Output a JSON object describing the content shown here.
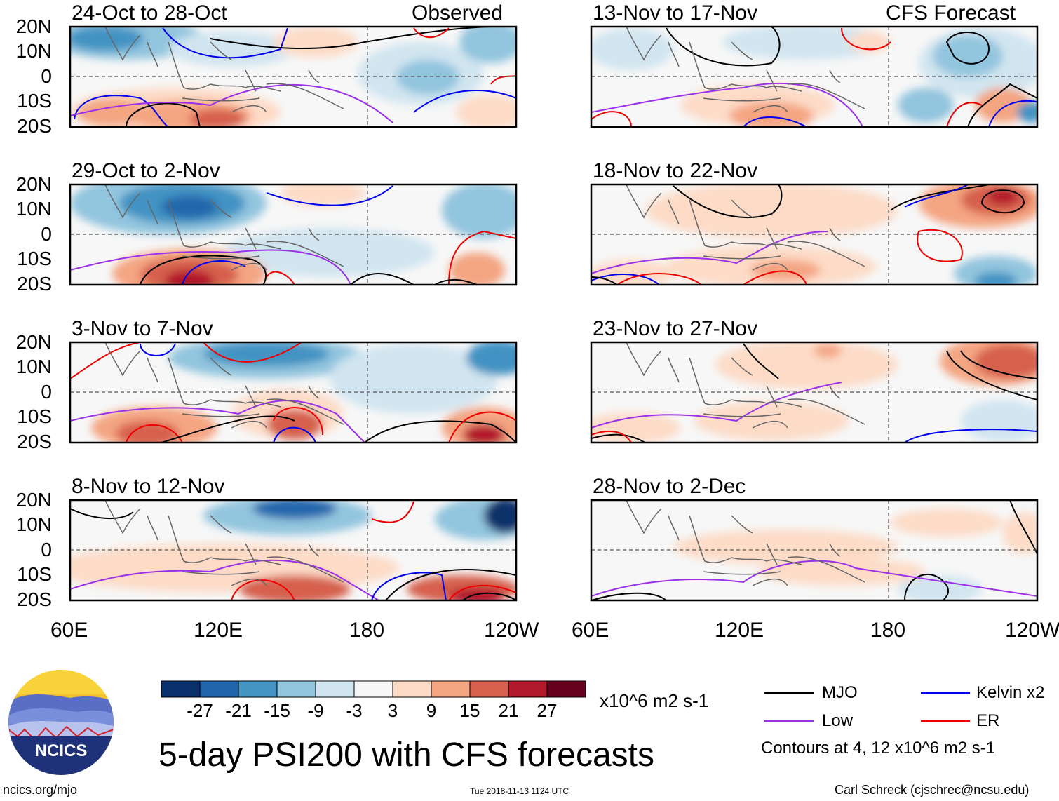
{
  "figure": {
    "title": "5-day PSI200 with CFS forecasts",
    "units": "x10^6 m2 s-1",
    "left_tag": "Observed",
    "right_tag": "CFS Forecast",
    "latitude_labels": [
      "20N",
      "10N",
      "0",
      "10S",
      "20S"
    ],
    "longitude_labels": [
      "60E",
      "120E",
      "180",
      "120W"
    ]
  },
  "panels": [
    {
      "id": "p1",
      "title": "24-Oct to 28-Oct",
      "type": "Observed"
    },
    {
      "id": "p2",
      "title": "29-Oct to 2-Nov",
      "type": "Observed"
    },
    {
      "id": "p3",
      "title": "3-Nov to 7-Nov",
      "type": "Observed"
    },
    {
      "id": "p4",
      "title": "8-Nov to 12-Nov",
      "type": "Observed"
    },
    {
      "id": "p5",
      "title": "13-Nov to 17-Nov",
      "type": "CFS Forecast"
    },
    {
      "id": "p6",
      "title": "18-Nov to 22-Nov",
      "type": "CFS Forecast"
    },
    {
      "id": "p7",
      "title": "23-Nov to 27-Nov",
      "type": "CFS Forecast"
    },
    {
      "id": "p8",
      "title": "28-Nov to 2-Dec",
      "type": "CFS Forecast"
    }
  ],
  "colorbar": {
    "ticks": [
      "-27",
      "-21",
      "-15",
      "-9",
      "-3",
      "3",
      "9",
      "15",
      "21",
      "27"
    ],
    "colors": [
      "#08306b",
      "#2166ac",
      "#4393c3",
      "#92c5de",
      "#d1e5f0",
      "#f7f7f7",
      "#fddbc7",
      "#f4a582",
      "#d6604d",
      "#b2182b",
      "#67001f"
    ]
  },
  "legend": {
    "items": [
      {
        "label": "MJO",
        "color": "#000000"
      },
      {
        "label": "Kelvin x2",
        "color": "#0000ee"
      },
      {
        "label": "Low",
        "color": "#9b30e8"
      },
      {
        "label": "ER",
        "color": "#ee0000"
      }
    ],
    "note": "Contours at 4, 12 x10^6 m2 s-1"
  },
  "logo": {
    "text": "NCICS"
  },
  "footer": {
    "url": "ncics.org/mjo",
    "timestamp": "Tue 2018-11-13 1124 UTC",
    "credit": "Carl Schreck (cjschrec@ncsu.edu)"
  }
}
